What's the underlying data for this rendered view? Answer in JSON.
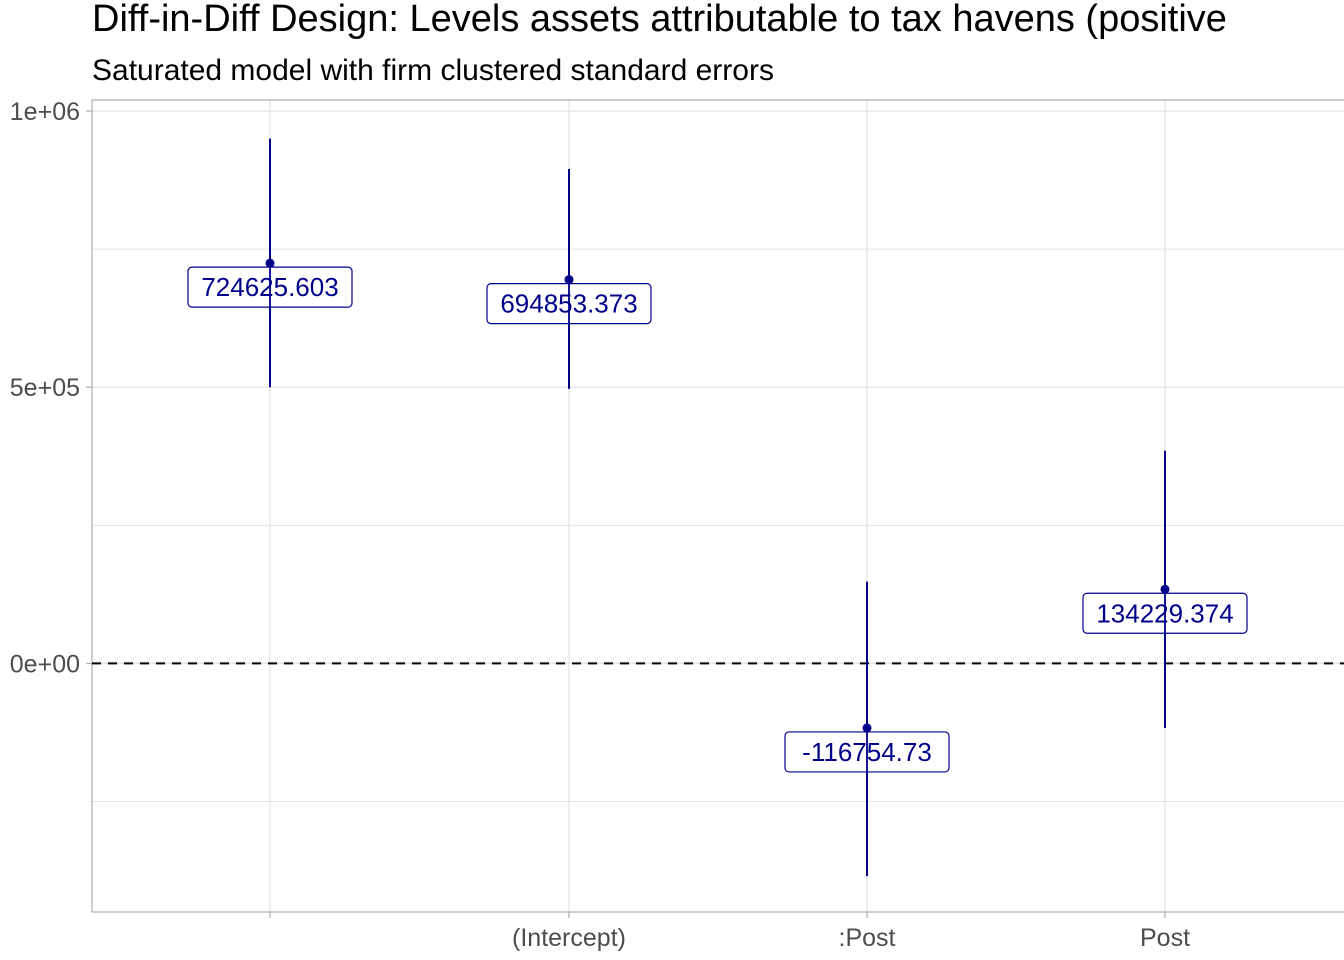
{
  "chart_data": {
    "type": "scatter",
    "title": "Diff-in-Diff Design: Levels assets attributable to tax havens (positive",
    "subtitle": "Saturated model with firm clustered standard errors",
    "xlabel": "",
    "ylabel": "",
    "categories": [
      "",
      "(Intercept)",
      ":Post",
      "Post"
    ],
    "points": [
      {
        "category": "",
        "estimate": 724625.603,
        "ci_low": 500000,
        "ci_high": 950000,
        "label": "724625.603"
      },
      {
        "category": "(Intercept)",
        "estimate": 694853.373,
        "ci_low": 497000,
        "ci_high": 895000,
        "label": "694853.373"
      },
      {
        "category": ":Post",
        "estimate": -116754.73,
        "ci_low": -385000,
        "ci_high": 148000,
        "label": "-116754.73"
      },
      {
        "category": "Post",
        "estimate": 134229.374,
        "ci_low": -117000,
        "ci_high": 385000,
        "label": "134229.374"
      }
    ],
    "ylim": [
      -450000,
      1020000
    ],
    "y_ticks": [
      0,
      500000,
      1000000
    ],
    "y_tick_labels": [
      "0e+00",
      "5e+05",
      "1e+06"
    ],
    "y_minor_ticks": [
      -250000,
      250000,
      750000
    ],
    "reference_line": {
      "y": 0,
      "style": "dashed",
      "color": "#000000"
    },
    "grid": true,
    "colors": {
      "point": "#00008b",
      "errorbar": "#00008b",
      "label_text": "#00008b",
      "label_border": "#00008b",
      "grid": "#e5e5e5",
      "axis": "#b3b3b3",
      "tick_text": "#4d4d4d"
    }
  }
}
